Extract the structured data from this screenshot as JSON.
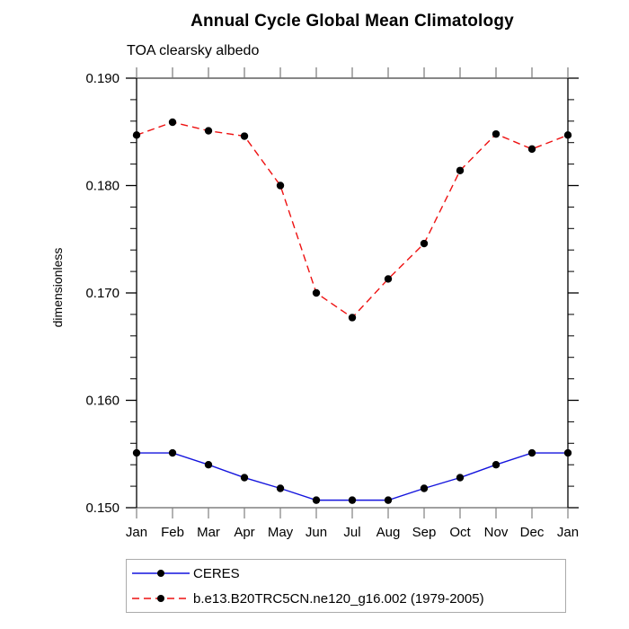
{
  "chart_data": {
    "type": "line",
    "title": "Annual Cycle Global Mean Climatology",
    "subtitle": "TOA clearsky albedo",
    "ylabel": "dimensionless",
    "xlabel": "",
    "x": [
      "Jan",
      "Feb",
      "Mar",
      "Apr",
      "May",
      "Jun",
      "Jul",
      "Aug",
      "Sep",
      "Oct",
      "Nov",
      "Dec",
      "Jan"
    ],
    "ylim": [
      0.15,
      0.19
    ],
    "ytick_labels": [
      "0.150",
      "0.160",
      "0.170",
      "0.180",
      "0.190"
    ],
    "ytick_major_step": 0.01,
    "ytick_minor_step": 0.002,
    "grid": false,
    "legend_position": "bottom",
    "series": [
      {
        "name": "CERES",
        "color": "#1414dd",
        "line_style": "solid",
        "marker": "filled-circle",
        "marker_color": "#000000",
        "values": [
          0.1551,
          0.1551,
          0.154,
          0.1528,
          0.1518,
          0.1507,
          0.1507,
          0.1507,
          0.1518,
          0.1528,
          0.154,
          0.1551,
          0.1551
        ]
      },
      {
        "name": "b.e13.B20TRC5CN.ne120_g16.002 (1979-2005)",
        "color": "#ee1111",
        "line_style": "dashed",
        "marker": "filled-circle",
        "marker_color": "#000000",
        "values": [
          0.1847,
          0.1859,
          0.1851,
          0.1846,
          0.18,
          0.17,
          0.1677,
          0.1713,
          0.1746,
          0.1814,
          0.1848,
          0.1834,
          0.1847
        ]
      }
    ]
  }
}
